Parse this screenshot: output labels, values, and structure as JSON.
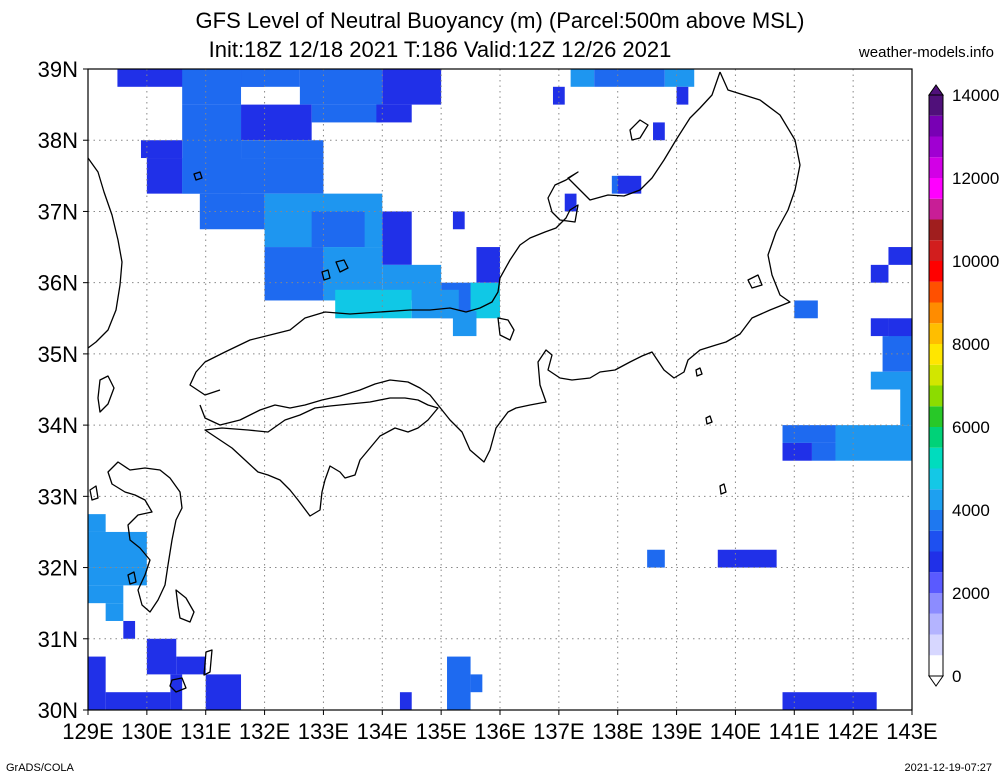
{
  "header": {
    "title_line1": "GFS Level of Neutral Buoyancy (m) (Parcel:500m above MSL)",
    "title_line2": "Init:18Z 12/18 2021 T:186 Valid:12Z 12/26 2021",
    "credit": "weather-models.info"
  },
  "footer": {
    "software": "GrADS/COLA",
    "timestamp": "2021-12-19-07:27"
  },
  "map": {
    "lon_labels": [
      "129E",
      "130E",
      "131E",
      "132E",
      "133E",
      "134E",
      "135E",
      "136E",
      "137E",
      "138E",
      "139E",
      "140E",
      "141E",
      "142E",
      "143E"
    ],
    "lat_labels": [
      "39N",
      "38N",
      "37N",
      "36N",
      "35N",
      "34N",
      "33N",
      "32N",
      "31N",
      "30N"
    ],
    "fill_colors": {
      "shade1": "#2030e8",
      "shade2": "#1e6af0",
      "shade3": "#1e96f0",
      "shade4": "#10c8e6"
    }
  },
  "colorbar": {
    "labels": [
      "0",
      "2000",
      "4000",
      "6000",
      "8000",
      "10000",
      "12000",
      "14000"
    ],
    "colors": [
      "#ffffff",
      "#d7d7ff",
      "#b4b4ff",
      "#8c8cff",
      "#5a5aff",
      "#2030e8",
      "#1e50f0",
      "#1e78f0",
      "#1ea0f0",
      "#14c8e6",
      "#00dcbe",
      "#00d278",
      "#28c828",
      "#8cdc00",
      "#d2e600",
      "#ffe600",
      "#ffbe00",
      "#ff8c00",
      "#ff5000",
      "#ff0000",
      "#d21e1e",
      "#a01e1e",
      "#c81e96",
      "#ff00ff",
      "#d200e6",
      "#a000d2",
      "#7800b4",
      "#50107a"
    ]
  }
}
